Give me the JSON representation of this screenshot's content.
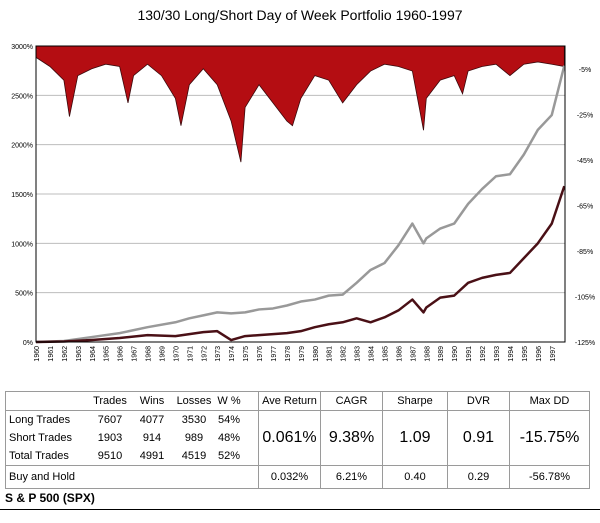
{
  "chart_data": {
    "type": "line",
    "title": "130/30 Long/Short Day of Week Portfolio 1960-1997",
    "x_ticks": [
      "1960",
      "1961",
      "1962",
      "1963",
      "1964",
      "1965",
      "1966",
      "1967",
      "1968",
      "1969",
      "1970",
      "1971",
      "1972",
      "1973",
      "1974",
      "1975",
      "1976",
      "1977",
      "1978",
      "1979",
      "1980",
      "1981",
      "1982",
      "1983",
      "1984",
      "1985",
      "1986",
      "1987",
      "1988",
      "1989",
      "1990",
      "1991",
      "1992",
      "1993",
      "1994",
      "1995",
      "1996",
      "1997"
    ],
    "y_left_ticks": [
      "3000%",
      "2500%",
      "2000%",
      "1500%",
      "1000%",
      "500%",
      "0%"
    ],
    "y_left_lim": [
      0,
      3000
    ],
    "y_right_ticks": [
      "-5%",
      "-25%",
      "-45%",
      "-65%",
      "-85%",
      "-105%",
      "-125%"
    ],
    "y_right_lim": [
      -125,
      5
    ],
    "series": [
      {
        "style": "line",
        "axis": "left",
        "color": "#999999",
        "x": [
          1960,
          1962,
          1964,
          1966,
          1968,
          1970,
          1971,
          1972,
          1973,
          1974,
          1975,
          1976,
          1977,
          1978,
          1979,
          1980,
          1981,
          1982,
          1983,
          1984,
          1985,
          1986,
          1987,
          1987.8,
          1988,
          1989,
          1990,
          1991,
          1992,
          1993,
          1994,
          1995,
          1996,
          1997,
          1997.9
        ],
        "values": [
          0,
          10,
          50,
          90,
          150,
          200,
          240,
          270,
          300,
          290,
          300,
          330,
          340,
          370,
          410,
          430,
          470,
          480,
          600,
          730,
          800,
          980,
          1200,
          1000,
          1050,
          1150,
          1200,
          1400,
          1550,
          1680,
          1700,
          1900,
          2150,
          2300,
          2800
        ]
      },
      {
        "style": "line",
        "axis": "left",
        "color": "#4a1016",
        "x": [
          1960,
          1962,
          1964,
          1966,
          1968,
          1970,
          1972,
          1973,
          1974,
          1975,
          1976,
          1977,
          1978,
          1979,
          1980,
          1981,
          1982,
          1983,
          1984,
          1985,
          1986,
          1987,
          1987.8,
          1988,
          1989,
          1990,
          1991,
          1992,
          1993,
          1994,
          1995,
          1996,
          1997,
          1997.9
        ],
        "values": [
          0,
          5,
          20,
          40,
          70,
          60,
          100,
          110,
          20,
          60,
          70,
          80,
          90,
          110,
          150,
          180,
          200,
          240,
          200,
          250,
          320,
          430,
          300,
          350,
          450,
          470,
          600,
          650,
          680,
          700,
          850,
          1000,
          1200,
          1580
        ]
      },
      {
        "style": "area",
        "axis": "right",
        "color": "#b40d12",
        "x": [
          1960,
          1961,
          1962,
          1962.4,
          1963,
          1964,
          1965,
          1966,
          1966.6,
          1967,
          1968,
          1969,
          1970,
          1970.4,
          1971,
          1972,
          1973,
          1974,
          1974.7,
          1975,
          1976,
          1977,
          1978,
          1978.4,
          1979,
          1980,
          1981,
          1982,
          1983,
          1984,
          1985,
          1986,
          1987,
          1987.8,
          1988,
          1989,
          1990,
          1990.6,
          1991,
          1992,
          1993,
          1994,
          1995,
          1996,
          1997,
          1997.9
        ],
        "values": [
          0,
          -4,
          -10,
          -26,
          -8,
          -5,
          -3,
          -4,
          -20,
          -8,
          -3,
          -8,
          -18,
          -30,
          -12,
          -5,
          -12,
          -28,
          -46,
          -22,
          -12,
          -20,
          -28,
          -30,
          -18,
          -8,
          -10,
          -20,
          -12,
          -6,
          -3,
          -4,
          -6,
          -32,
          -18,
          -10,
          -8,
          -16,
          -6,
          -4,
          -3,
          -8,
          -3,
          -2,
          -3,
          -4
        ]
      }
    ]
  },
  "table": {
    "headers": [
      "Trades",
      "Wins",
      "Losses",
      "W %"
    ],
    "metric_headers": [
      "Ave Return",
      "CAGR",
      "Sharpe",
      "DVR",
      "Max DD"
    ],
    "rows": [
      {
        "label": "Long Trades",
        "trades": "7607",
        "wins": "4077",
        "losses": "3530",
        "wpct": "54%"
      },
      {
        "label": "Short Trades",
        "trades": "1903",
        "wins": "914",
        "losses": "989",
        "wpct": "48%"
      },
      {
        "label": "Total Trades",
        "trades": "9510",
        "wins": "4991",
        "losses": "4519",
        "wpct": "52%"
      }
    ],
    "strategy_metrics": [
      "0.061%",
      "9.38%",
      "1.09",
      "0.91",
      "-15.75%"
    ],
    "buy_hold_label": "Buy and Hold",
    "buy_hold_metrics": [
      "0.032%",
      "6.21%",
      "0.40",
      "0.29",
      "-56.78%"
    ]
  },
  "index_label": "S & P 500 (SPX)"
}
